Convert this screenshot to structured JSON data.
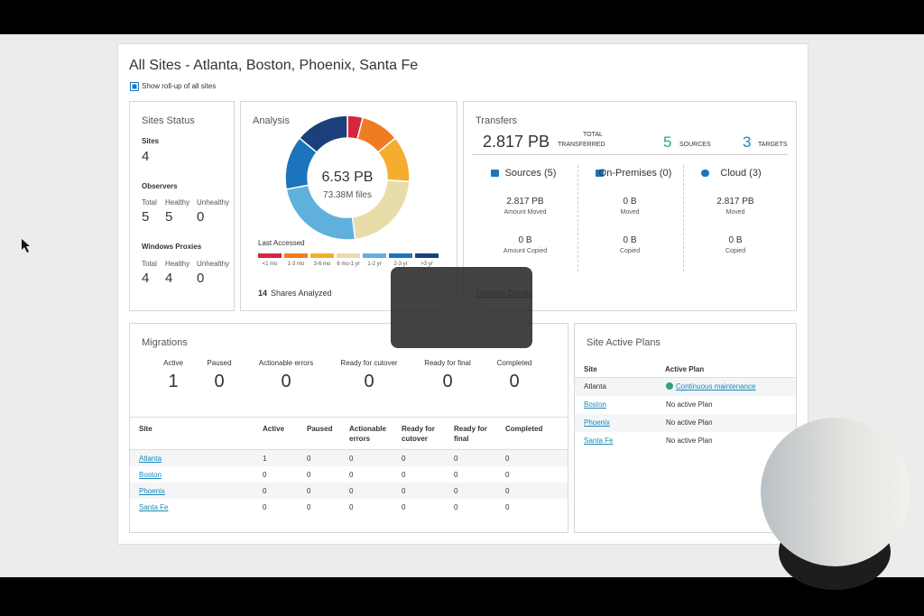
{
  "header": {
    "title": "All Sites - Atlanta, Boston, Phoenix, Santa Fe",
    "rollup": "Show roll-up of all sites"
  },
  "sites_status": {
    "title": "Sites Status",
    "sites_label": "Sites",
    "sites": 4,
    "observers_label": "Observers",
    "observers_columns": [
      "Total",
      "Healthy",
      "Unhealthy"
    ],
    "observers": [
      5,
      5,
      0
    ],
    "proxies_label": "Windows Proxies",
    "proxies_columns": [
      "Total",
      "Healthy",
      "Unhealthy"
    ],
    "proxies": [
      4,
      4,
      0
    ]
  },
  "chart_data": {
    "type": "pie",
    "title": "Analysis",
    "center_value": "6.53 PB",
    "center_label": "73.38M files",
    "legend_title": "Last Accessed",
    "categories": [
      "<1 mo",
      "1-3 mo",
      "3-6 mo",
      "6 mo-1 yr",
      "1-2 yr",
      "2-3 yr",
      ">3 yr"
    ],
    "values": [
      4,
      10,
      12,
      22,
      24,
      14,
      14
    ],
    "colors": [
      "#d9263f",
      "#f07c22",
      "#f6ad2f",
      "#e8dca8",
      "#5fb0dd",
      "#1c75bc",
      "#1b3f7a"
    ],
    "shares_count": 14,
    "shares_label": "Shares Analyzed"
  },
  "transfers": {
    "title": "Transfers",
    "total": "2.817 PB",
    "total_label_1": "TOTAL",
    "total_label_2": "TRANSFERRED",
    "sources": 5,
    "sources_label": "SOURCES",
    "targets": 3,
    "targets_label": "TARGETS",
    "columns": [
      {
        "title": "Sources (5)",
        "rows": [
          [
            "2.817 PB",
            "Amount Moved"
          ],
          [
            "0 B",
            "Amount Copied"
          ]
        ]
      },
      {
        "title": "On-Premises (0)",
        "rows": [
          [
            "0 B",
            "Moved"
          ],
          [
            "0 B",
            "Copied"
          ]
        ]
      },
      {
        "title": "Cloud (3)",
        "rows": [
          [
            "2.817 PB",
            "Moved"
          ],
          [
            "0 B",
            "Copied"
          ]
        ]
      }
    ],
    "link": "Transfer Details"
  },
  "migrations": {
    "title": "Migrations",
    "summary_labels": [
      "Active",
      "Paused",
      "Actionable errors",
      "Ready for cutover",
      "Ready for final",
      "Completed"
    ],
    "summary_values": [
      1,
      0,
      0,
      0,
      0,
      0
    ],
    "table": {
      "headers": [
        "Site",
        "Active",
        "Paused",
        "Actionable errors",
        "Ready for cutover",
        "Ready for final",
        "Completed"
      ],
      "rows": [
        [
          "Atlanta",
          1,
          0,
          0,
          0,
          0,
          0
        ],
        [
          "Boston",
          0,
          0,
          0,
          0,
          0,
          0
        ],
        [
          "Phoenix",
          0,
          0,
          0,
          0,
          0,
          0
        ],
        [
          "Santa Fe",
          0,
          0,
          0,
          0,
          0,
          0
        ]
      ]
    }
  },
  "plans": {
    "title": "Site Active Plans",
    "headers": [
      "Site",
      "Active Plan"
    ],
    "rows": [
      [
        "Atlanta",
        "Continuous maintenance"
      ],
      [
        "Boston",
        "No active Plan"
      ],
      [
        "Phoenix",
        "No active Plan"
      ],
      [
        "Santa Fe",
        "No active Plan"
      ]
    ]
  }
}
